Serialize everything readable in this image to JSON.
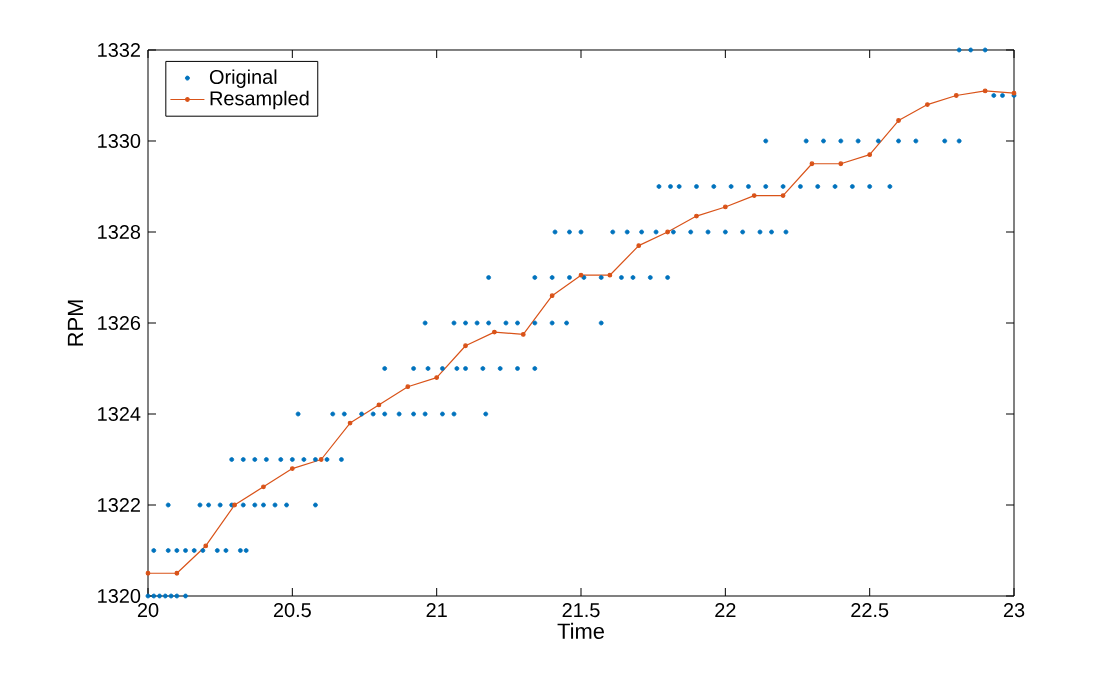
{
  "chart_data": {
    "type": "scatter",
    "xlabel": "Time",
    "ylabel": "RPM",
    "xlim": [
      20,
      23
    ],
    "ylim": [
      1320,
      1332
    ],
    "xticks": [
      20,
      20.5,
      21,
      21.5,
      22,
      22.5,
      23
    ],
    "yticks": [
      1320,
      1322,
      1324,
      1326,
      1328,
      1330,
      1332
    ],
    "legend": "top left",
    "marker": "circle",
    "grid": false,
    "series": [
      {
        "name": "Original",
        "color": "#0072bd",
        "x": [
          20.0,
          20.02,
          20.04,
          20.06,
          20.08,
          20.1,
          20.13,
          20.02,
          20.07,
          20.1,
          20.13,
          20.16,
          20.19,
          20.24,
          20.27,
          20.32,
          20.34,
          20.07,
          20.18,
          20.21,
          20.25,
          20.29,
          20.33,
          20.37,
          20.4,
          20.44,
          20.48,
          20.58,
          20.29,
          20.33,
          20.37,
          20.41,
          20.46,
          20.5,
          20.54,
          20.58,
          20.62,
          20.67,
          20.52,
          20.64,
          20.68,
          20.74,
          20.78,
          20.82,
          20.87,
          20.92,
          20.96,
          21.02,
          21.06,
          21.17,
          20.82,
          20.92,
          20.97,
          21.02,
          21.07,
          21.1,
          21.16,
          21.22,
          21.28,
          21.34,
          20.96,
          21.06,
          21.1,
          21.14,
          21.18,
          21.24,
          21.28,
          21.34,
          21.4,
          21.45,
          21.57,
          21.18,
          21.34,
          21.4,
          21.46,
          21.51,
          21.57,
          21.64,
          21.68,
          21.74,
          21.8,
          21.41,
          21.46,
          21.5,
          21.61,
          21.66,
          21.71,
          21.76,
          21.82,
          21.88,
          21.94,
          22.0,
          22.06,
          22.12,
          22.16,
          22.21,
          21.77,
          21.81,
          21.84,
          21.9,
          21.96,
          22.02,
          22.08,
          22.14,
          22.2,
          22.26,
          22.32,
          22.38,
          22.44,
          22.5,
          22.57,
          22.14,
          22.28,
          22.34,
          22.4,
          22.46,
          22.53,
          22.6,
          22.66,
          22.76,
          22.81,
          22.93,
          22.96,
          23.0,
          22.81,
          22.85,
          22.9
        ],
        "values": [
          1320,
          1320,
          1320,
          1320,
          1320,
          1320,
          1320,
          1321,
          1321,
          1321,
          1321,
          1321,
          1321,
          1321,
          1321,
          1321,
          1321,
          1322,
          1322,
          1322,
          1322,
          1322,
          1322,
          1322,
          1322,
          1322,
          1322,
          1322,
          1323,
          1323,
          1323,
          1323,
          1323,
          1323,
          1323,
          1323,
          1323,
          1323,
          1324,
          1324,
          1324,
          1324,
          1324,
          1324,
          1324,
          1324,
          1324,
          1324,
          1324,
          1324,
          1325,
          1325,
          1325,
          1325,
          1325,
          1325,
          1325,
          1325,
          1325,
          1325,
          1326,
          1326,
          1326,
          1326,
          1326,
          1326,
          1326,
          1326,
          1326,
          1326,
          1326,
          1327,
          1327,
          1327,
          1327,
          1327,
          1327,
          1327,
          1327,
          1327,
          1327,
          1328,
          1328,
          1328,
          1328,
          1328,
          1328,
          1328,
          1328,
          1328,
          1328,
          1328,
          1328,
          1328,
          1328,
          1328,
          1329,
          1329,
          1329,
          1329,
          1329,
          1329,
          1329,
          1329,
          1329,
          1329,
          1329,
          1329,
          1329,
          1329,
          1329,
          1330,
          1330,
          1330,
          1330,
          1330,
          1330,
          1330,
          1330,
          1330,
          1330,
          1331,
          1331,
          1331,
          1332,
          1332,
          1332
        ]
      },
      {
        "name": "Resampled",
        "type": "line",
        "color": "#d95319",
        "line_style": "solid",
        "x": [
          20.0,
          20.1,
          20.2,
          20.3,
          20.4,
          20.5,
          20.6,
          20.7,
          20.8,
          20.9,
          21.0,
          21.1,
          21.2,
          21.3,
          21.4,
          21.5,
          21.6,
          21.7,
          21.8,
          21.9,
          22.0,
          22.1,
          22.2,
          22.3,
          22.4,
          22.5,
          22.6,
          22.7,
          22.8,
          22.9,
          23.0
        ],
        "values": [
          1320.5,
          1320.5,
          1321.1,
          1322.0,
          1322.4,
          1322.8,
          1323.0,
          1323.8,
          1324.2,
          1324.6,
          1324.8,
          1325.5,
          1325.8,
          1325.75,
          1326.6,
          1327.05,
          1327.05,
          1327.7,
          1328.0,
          1328.35,
          1328.55,
          1328.8,
          1328.8,
          1329.5,
          1329.5,
          1329.7,
          1330.45,
          1330.8,
          1331.0,
          1331.1,
          1331.05
        ]
      }
    ]
  }
}
